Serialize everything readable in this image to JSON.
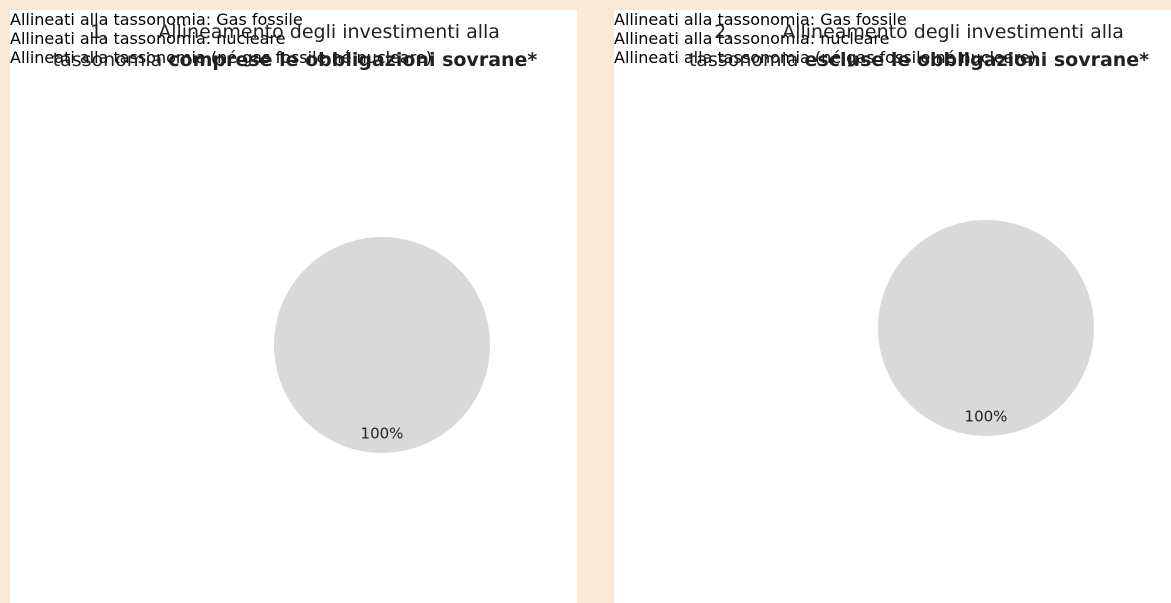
{
  "chart_data": [
    {
      "type": "pie",
      "title_number": "1.",
      "title": "Allineamento degli investimenti alla",
      "title_line2": "tassonomia",
      "title_bold": "comprese le obbligazioni sovrane*",
      "categories": [
        "Allineati alla tassonomia: Gas fossile",
        "Allineati alla tassonomia: nucleare",
        "Allineati alla tassonomia (né gas fossile né nucleare)",
        null
      ],
      "values": [
        0,
        0,
        0,
        100
      ],
      "value_labels": [
        null,
        null,
        null,
        "100%"
      ],
      "colors": [
        "#8fa38f",
        "#5e7f5e",
        "#1e4a1e",
        "#d9d9d9"
      ],
      "legend": "left"
    },
    {
      "type": "pie",
      "title_number": "2.",
      "title": "Allineamento degli investimenti alla",
      "title_line2": "tassonomia",
      "title_bold": "escluse le obbligazioni sovrane*",
      "categories": [
        "Allineati alla tassonomia: Gas fossile",
        "Allineati alla tassonomia: nucleare",
        "Allineati alla tassonomia (né gas fossile né nucleare)",
        null
      ],
      "values": [
        0,
        0,
        0,
        100
      ],
      "value_labels": [
        null,
        null,
        null,
        "100%"
      ],
      "colors": [
        "#8fa38f",
        "#5e7f5e",
        "#1e4a1e",
        "#d9d9d9"
      ],
      "legend": "left"
    }
  ]
}
